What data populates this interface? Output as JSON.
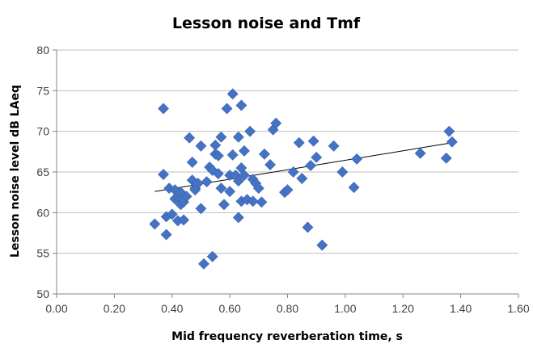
{
  "chart_data": {
    "type": "scatter",
    "title": "Lesson noise and Tmf",
    "xlabel": "Mid frequency reverberation time, s",
    "ylabel": "Lesson noise level dB LAeq",
    "xlim": [
      0,
      1.6
    ],
    "ylim": [
      50,
      80
    ],
    "xticks": [
      "0.00",
      "0.20",
      "0.40",
      "0.60",
      "0.80",
      "1.00",
      "1.20",
      "1.40",
      "1.60"
    ],
    "yticks": [
      "50",
      "55",
      "60",
      "65",
      "70",
      "75",
      "80"
    ],
    "grid": "horizontal",
    "legend": "none",
    "marker_color": "#4472C4",
    "trendline_color": "#000000",
    "trendline": {
      "x": [
        0.34,
        1.37
      ],
      "y": [
        62.6,
        68.6
      ]
    },
    "series": [
      {
        "points": [
          [
            0.34,
            58.6
          ],
          [
            0.37,
            64.7
          ],
          [
            0.37,
            72.8
          ],
          [
            0.38,
            59.5
          ],
          [
            0.38,
            57.3
          ],
          [
            0.39,
            63.0
          ],
          [
            0.4,
            59.8
          ],
          [
            0.41,
            62.8
          ],
          [
            0.41,
            61.7
          ],
          [
            0.42,
            59.0
          ],
          [
            0.42,
            62.0
          ],
          [
            0.43,
            61.0
          ],
          [
            0.43,
            62.5
          ],
          [
            0.44,
            59.1
          ],
          [
            0.44,
            61.3
          ],
          [
            0.45,
            62.0
          ],
          [
            0.46,
            69.2
          ],
          [
            0.47,
            64.0
          ],
          [
            0.47,
            66.2
          ],
          [
            0.48,
            63.0
          ],
          [
            0.48,
            62.8
          ],
          [
            0.49,
            63.6
          ],
          [
            0.5,
            60.5
          ],
          [
            0.5,
            68.2
          ],
          [
            0.51,
            53.7
          ],
          [
            0.52,
            63.8
          ],
          [
            0.53,
            65.6
          ],
          [
            0.54,
            54.6
          ],
          [
            0.54,
            65.2
          ],
          [
            0.55,
            67.2
          ],
          [
            0.55,
            68.3
          ],
          [
            0.56,
            64.8
          ],
          [
            0.56,
            67.0
          ],
          [
            0.57,
            63.0
          ],
          [
            0.57,
            69.3
          ],
          [
            0.58,
            61.0
          ],
          [
            0.59,
            72.8
          ],
          [
            0.6,
            62.6
          ],
          [
            0.6,
            64.6
          ],
          [
            0.61,
            74.6
          ],
          [
            0.61,
            67.1
          ],
          [
            0.62,
            64.6
          ],
          [
            0.63,
            59.4
          ],
          [
            0.63,
            63.9
          ],
          [
            0.63,
            69.3
          ],
          [
            0.64,
            73.2
          ],
          [
            0.64,
            61.4
          ],
          [
            0.64,
            65.5
          ],
          [
            0.65,
            64.6
          ],
          [
            0.65,
            67.6
          ],
          [
            0.66,
            61.6
          ],
          [
            0.67,
            70.0
          ],
          [
            0.68,
            61.4
          ],
          [
            0.68,
            64.1
          ],
          [
            0.69,
            63.6
          ],
          [
            0.7,
            63.0
          ],
          [
            0.71,
            61.3
          ],
          [
            0.72,
            67.2
          ],
          [
            0.74,
            65.9
          ],
          [
            0.75,
            70.2
          ],
          [
            0.76,
            71.0
          ],
          [
            0.79,
            62.5
          ],
          [
            0.8,
            62.8
          ],
          [
            0.82,
            65.0
          ],
          [
            0.84,
            68.6
          ],
          [
            0.85,
            64.2
          ],
          [
            0.87,
            58.2
          ],
          [
            0.88,
            65.8
          ],
          [
            0.89,
            68.8
          ],
          [
            0.9,
            66.8
          ],
          [
            0.92,
            56.0
          ],
          [
            0.96,
            68.2
          ],
          [
            0.99,
            65.0
          ],
          [
            1.03,
            63.1
          ],
          [
            1.04,
            66.6
          ],
          [
            1.26,
            67.3
          ],
          [
            1.35,
            66.7
          ],
          [
            1.36,
            70.0
          ],
          [
            1.37,
            68.7
          ]
        ]
      }
    ]
  }
}
